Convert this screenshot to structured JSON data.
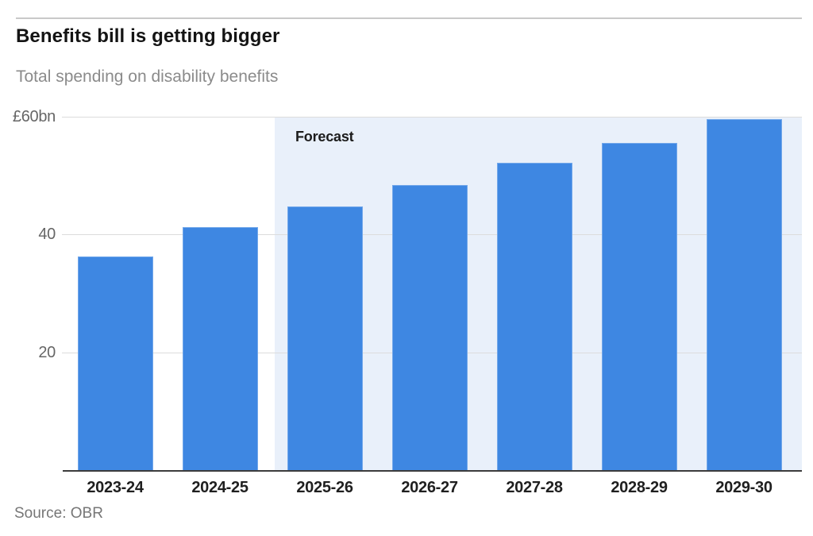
{
  "header": {
    "title": "Benefits bill is getting bigger",
    "subtitle": "Total spending on disability benefits"
  },
  "source": "Source: OBR",
  "chart_data": {
    "type": "bar",
    "title": "Benefits bill is getting bigger",
    "subtitle": "Total spending on disability benefits",
    "categories": [
      "2023-24",
      "2024-25",
      "2025-26",
      "2026-27",
      "2027-28",
      "2028-29",
      "2029-30"
    ],
    "values": [
      36.3,
      41.2,
      44.8,
      48.4,
      52.2,
      55.6,
      59.6
    ],
    "unit": "£bn",
    "ylim": [
      0,
      60
    ],
    "yticks": [
      {
        "value": 60,
        "label": "£60bn"
      },
      {
        "value": 40,
        "label": "40"
      },
      {
        "value": 20,
        "label": "20"
      }
    ],
    "grid": true,
    "legend": "none",
    "forecast": {
      "label": "Forecast",
      "start_category": "2025-26",
      "start_index": 2
    },
    "source": "Source: OBR"
  },
  "colors": {
    "bar_fill": "#3e87e2",
    "forecast_band": "#e9f0fa",
    "gridline": "#dcdcdc",
    "axis_line": "#3c3c3c",
    "title_text": "#141414",
    "subtitle_text": "#8b8b8b",
    "tick_text": "#666666",
    "x_label_text": "#1f1f1f",
    "source_text": "#767676",
    "top_rule": "#c9c9c9"
  }
}
